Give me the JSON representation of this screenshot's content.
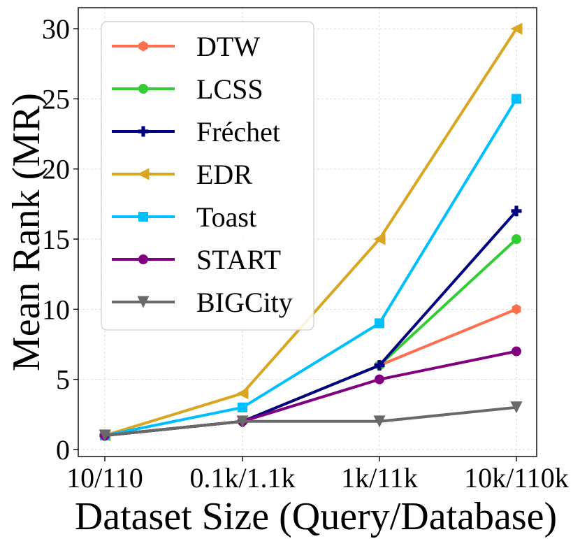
{
  "chart_data": {
    "type": "line",
    "title": "",
    "xlabel": "Dataset Size (Query/Database)",
    "ylabel": "Mean Rank (MR)",
    "categories": [
      "10/110",
      "0.1k/1.1k",
      "1k/11k",
      "10k/110k"
    ],
    "ylim": [
      -0.5,
      31.5
    ],
    "yticks": [
      0,
      5,
      10,
      15,
      20,
      25,
      30
    ],
    "grid": true,
    "legend_position": "upper-left",
    "series": [
      {
        "name": "DTW",
        "color": "#ff6f4e",
        "marker": "hexagon",
        "values": [
          1,
          2,
          6,
          10
        ]
      },
      {
        "name": "LCSS",
        "color": "#32cd32",
        "marker": "circle",
        "values": [
          1,
          2,
          6,
          15
        ]
      },
      {
        "name": "Fréchet",
        "color": "#000080",
        "marker": "plus",
        "values": [
          1,
          2,
          6,
          17
        ]
      },
      {
        "name": "EDR",
        "color": "#daa520",
        "marker": "triangle-left",
        "values": [
          1,
          4,
          15,
          30
        ]
      },
      {
        "name": "Toast",
        "color": "#00bfff",
        "marker": "square",
        "values": [
          1,
          3,
          9,
          25
        ]
      },
      {
        "name": "START",
        "color": "#800080",
        "marker": "circle",
        "values": [
          1,
          2,
          5,
          7
        ]
      },
      {
        "name": "BIGCity",
        "color": "#696969",
        "marker": "triangle-down",
        "values": [
          1,
          2,
          2,
          3
        ]
      }
    ]
  }
}
